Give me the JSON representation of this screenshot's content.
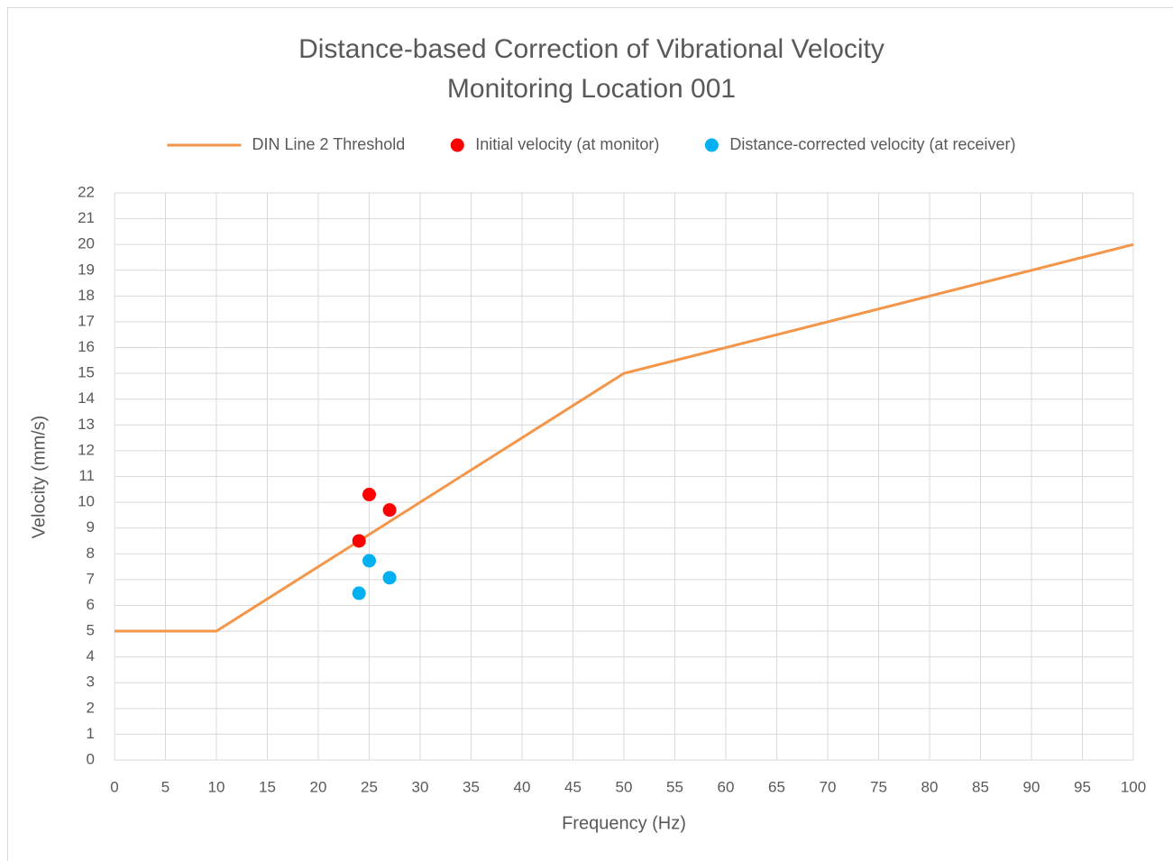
{
  "chart_data": {
    "type": "scatter",
    "title": "Distance-based Correction of Vibrational Velocity",
    "subtitle": "Monitoring Location 001",
    "x_label": "Frequency (Hz)",
    "y_label": "Velocity (mm/s)",
    "xlim": [
      0,
      100
    ],
    "ylim": [
      0,
      22
    ],
    "xticks": [
      0,
      5,
      10,
      15,
      20,
      25,
      30,
      35,
      40,
      45,
      50,
      55,
      60,
      65,
      70,
      75,
      80,
      85,
      90,
      95,
      100
    ],
    "yticks": [
      0,
      1,
      2,
      3,
      4,
      5,
      6,
      7,
      8,
      9,
      10,
      11,
      12,
      13,
      14,
      15,
      16,
      17,
      18,
      19,
      20,
      21,
      22
    ],
    "grid": true,
    "legend": "top",
    "series": [
      {
        "name": "DIN Line 2 Threshold",
        "color": "#f4964a",
        "mode": "line",
        "x": [
          0,
          10,
          50,
          100
        ],
        "values": [
          5,
          5,
          15,
          20
        ]
      },
      {
        "name": "Initial velocity (at monitor)",
        "color": "#ff0000",
        "mode": "markers",
        "x": [
          24,
          25,
          27
        ],
        "values": [
          8.5,
          10.3,
          9.7
        ]
      },
      {
        "name": "Distance-corrected velocity (at receiver)",
        "color": "#00b0f0",
        "mode": "markers",
        "x": [
          24,
          25,
          27
        ],
        "values": [
          6.47,
          7.73,
          7.07
        ]
      }
    ]
  }
}
